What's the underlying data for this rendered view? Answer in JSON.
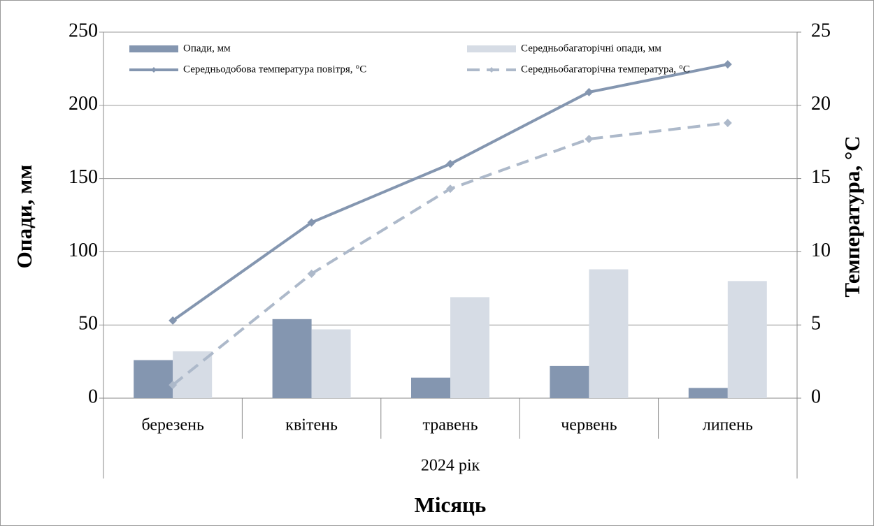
{
  "chart_data": {
    "type": "bar",
    "categories": [
      "березень",
      "квітень",
      "травень",
      "червень",
      "липень"
    ],
    "group_label": "2024 рік",
    "x_label": "Місяць",
    "y_label": "Опади, мм",
    "y2_label": "Температура, °С",
    "series": [
      {
        "name": "Опади, мм",
        "type": "bar",
        "color": "#8496b0",
        "values": [
          26,
          54,
          14,
          22,
          7
        ]
      },
      {
        "name": "Середньобагаторічні опади, мм",
        "type": "bar",
        "color": "#d6dce5",
        "values": [
          32,
          47,
          69,
          88,
          80
        ]
      },
      {
        "name": "Середньодобова температура повітря, °С",
        "type": "line",
        "axis": "y2",
        "color": "#8496b0",
        "dashed": false,
        "values": [
          5.3,
          12.0,
          16.0,
          20.9,
          22.8
        ]
      },
      {
        "name": "Середньобагаторічна температура, °С",
        "type": "line",
        "axis": "y2",
        "color": "#adb9ca",
        "dashed": true,
        "values": [
          0.9,
          8.5,
          14.3,
          17.7,
          18.8
        ]
      }
    ],
    "ylim": [
      0,
      250
    ],
    "yticks": [
      0,
      50,
      100,
      150,
      200,
      250
    ],
    "y2lim": [
      0,
      25
    ],
    "y2ticks": [
      0,
      5,
      10,
      15,
      20,
      25
    ],
    "grid": true
  }
}
